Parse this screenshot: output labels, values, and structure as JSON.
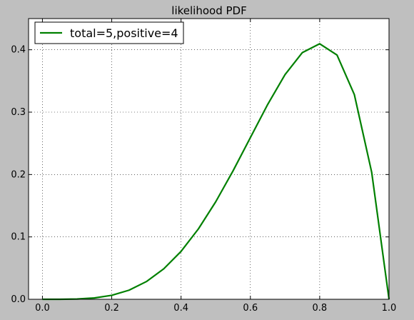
{
  "chart_data": {
    "type": "line",
    "title": "likelihood PDF",
    "xlabel": "",
    "ylabel": "",
    "xlim": [
      -0.04,
      1.0
    ],
    "ylim": [
      0.0,
      0.45
    ],
    "x_ticks": [
      0.0,
      0.2,
      0.4,
      0.6,
      0.8,
      1.0
    ],
    "x_tick_labels": [
      "0.0",
      "0.2",
      "0.4",
      "0.6",
      "0.8",
      "1.0"
    ],
    "y_ticks": [
      0.0,
      0.1,
      0.2,
      0.3,
      0.4
    ],
    "y_tick_labels": [
      "0.0",
      "0.1",
      "0.2",
      "0.3",
      "0.4"
    ],
    "grid": true,
    "legend_position": "top-left",
    "colors": {
      "series": "#008000",
      "plot_background": "#ffffff",
      "figure_background": "#bfbfbf"
    },
    "series": [
      {
        "name": "total=5,positive=4",
        "color": "#008000",
        "x": [
          0.0,
          0.05,
          0.1,
          0.15,
          0.2,
          0.25,
          0.3,
          0.35,
          0.4,
          0.45,
          0.5,
          0.55,
          0.6,
          0.65,
          0.7,
          0.75,
          0.8,
          0.85,
          0.9,
          0.95,
          1.0
        ],
        "y": [
          0.0,
          3e-05,
          0.00045,
          0.00215,
          0.0064,
          0.0146,
          0.0284,
          0.0488,
          0.0768,
          0.1128,
          0.1563,
          0.2059,
          0.2592,
          0.3124,
          0.3602,
          0.3955,
          0.4096,
          0.3915,
          0.3281,
          0.2036,
          0.0
        ]
      }
    ]
  }
}
